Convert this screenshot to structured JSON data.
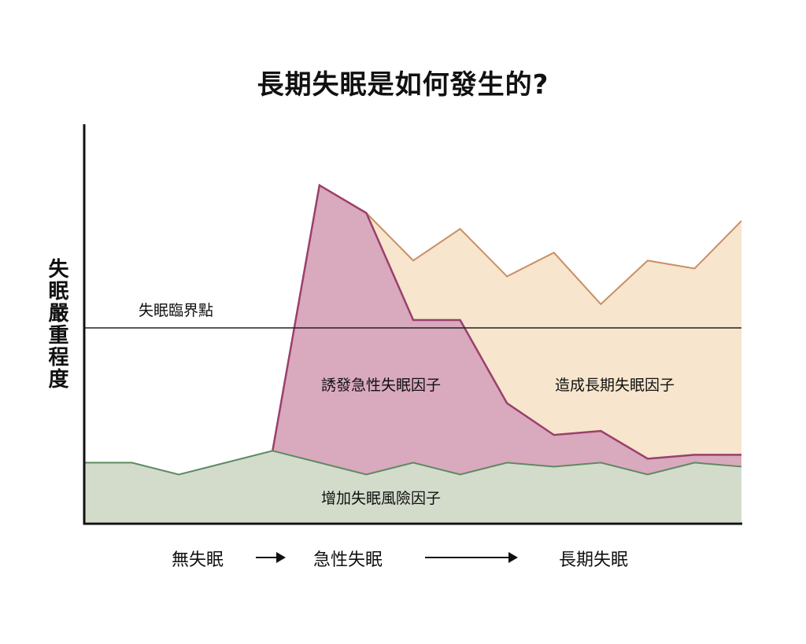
{
  "title": "長期失眠是如何發生的?",
  "ylabel": "失眠嚴重程度",
  "chart_data": {
    "type": "area",
    "title": "長期失眠是如何發生的?",
    "ylabel": "失眠嚴重程度",
    "xlabel": "",
    "x": [
      0,
      1,
      2,
      3,
      4,
      5,
      6,
      7,
      8,
      9,
      10,
      11,
      12,
      13,
      14
    ],
    "ylim": [
      0,
      100
    ],
    "threshold": {
      "label": "失眠臨界點",
      "value": 49
    },
    "series": [
      {
        "name": "增加失眠風險因子",
        "color": "#d3dccb",
        "stroke": "#5e8a62",
        "values": [
          15,
          15,
          12,
          15,
          18,
          15,
          12,
          15,
          12,
          15,
          14,
          15,
          12,
          15,
          14
        ]
      },
      {
        "name": "誘發急性失眠因子",
        "color": "#d9a9bd",
        "stroke": "#9b3f6c",
        "start": 4,
        "top": [
          null,
          null,
          null,
          null,
          18,
          85,
          78,
          51,
          51,
          30,
          22,
          23,
          16,
          17,
          17
        ]
      },
      {
        "name": "造成長期失眠因子",
        "color": "#f7e5cd",
        "stroke": "#c98f65",
        "start": 6,
        "top": [
          null,
          null,
          null,
          null,
          null,
          null,
          78,
          66,
          74,
          62,
          68,
          55,
          66,
          64,
          76
        ]
      }
    ],
    "stages": [
      "無失眠",
      "急性失眠",
      "長期失眠"
    ]
  }
}
